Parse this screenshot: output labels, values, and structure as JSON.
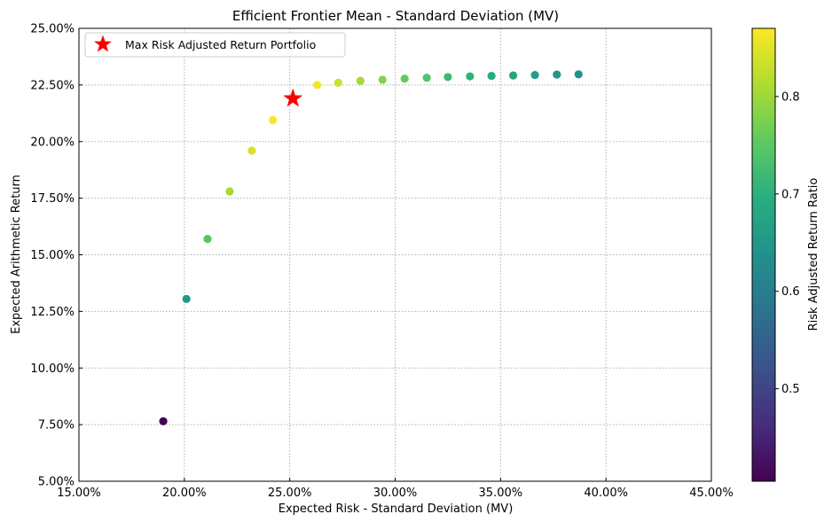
{
  "chart_data": {
    "type": "scatter",
    "title": "Efficient Frontier Mean - Standard Deviation (MV)",
    "xlabel": "Expected Risk - Standard Deviation (MV)",
    "ylabel": "Expected Arithmetic Return",
    "xlim": [
      0.15,
      0.45
    ],
    "ylim": [
      0.05,
      0.25
    ],
    "x_ticks": [
      "15.00%",
      "20.00%",
      "25.00%",
      "30.00%",
      "35.00%",
      "40.00%",
      "45.00%"
    ],
    "y_ticks": [
      "5.00%",
      "7.50%",
      "10.00%",
      "12.50%",
      "15.00%",
      "17.50%",
      "20.00%",
      "22.50%",
      "25.00%"
    ],
    "grid": true,
    "legend": {
      "position": "top-left",
      "entries": [
        "Max Risk Adjusted Return Portfolio"
      ]
    },
    "colorbar": {
      "label": "Risk Adjusted Return Ratio",
      "range": [
        0.405,
        0.87
      ],
      "ticks": [
        "0.5",
        "0.6",
        "0.7",
        "0.8"
      ],
      "colormap": "viridis"
    },
    "series": [
      {
        "points": [
          {
            "x": 0.19,
            "y": 0.0765,
            "ratio": 0.405
          },
          {
            "x": 0.201,
            "y": 0.1305,
            "ratio": 0.65
          },
          {
            "x": 0.211,
            "y": 0.157,
            "ratio": 0.745
          },
          {
            "x": 0.2215,
            "y": 0.178,
            "ratio": 0.805
          },
          {
            "x": 0.232,
            "y": 0.196,
            "ratio": 0.845
          },
          {
            "x": 0.242,
            "y": 0.2095,
            "ratio": 0.865
          },
          {
            "x": 0.263,
            "y": 0.225,
            "ratio": 0.865
          },
          {
            "x": 0.273,
            "y": 0.226,
            "ratio": 0.835
          },
          {
            "x": 0.2835,
            "y": 0.2268,
            "ratio": 0.805
          },
          {
            "x": 0.294,
            "y": 0.2273,
            "ratio": 0.785
          },
          {
            "x": 0.3045,
            "y": 0.2278,
            "ratio": 0.76
          },
          {
            "x": 0.315,
            "y": 0.2282,
            "ratio": 0.74
          },
          {
            "x": 0.325,
            "y": 0.2285,
            "ratio": 0.72
          },
          {
            "x": 0.3355,
            "y": 0.2288,
            "ratio": 0.705
          },
          {
            "x": 0.3457,
            "y": 0.229,
            "ratio": 0.69
          },
          {
            "x": 0.356,
            "y": 0.2292,
            "ratio": 0.675
          },
          {
            "x": 0.3663,
            "y": 0.2294,
            "ratio": 0.66
          },
          {
            "x": 0.3767,
            "y": 0.2296,
            "ratio": 0.648
          },
          {
            "x": 0.387,
            "y": 0.2297,
            "ratio": 0.635
          }
        ]
      }
    ],
    "highlight": {
      "x": 0.2515,
      "y": 0.219,
      "color": "#ff0000",
      "marker": "star"
    }
  }
}
